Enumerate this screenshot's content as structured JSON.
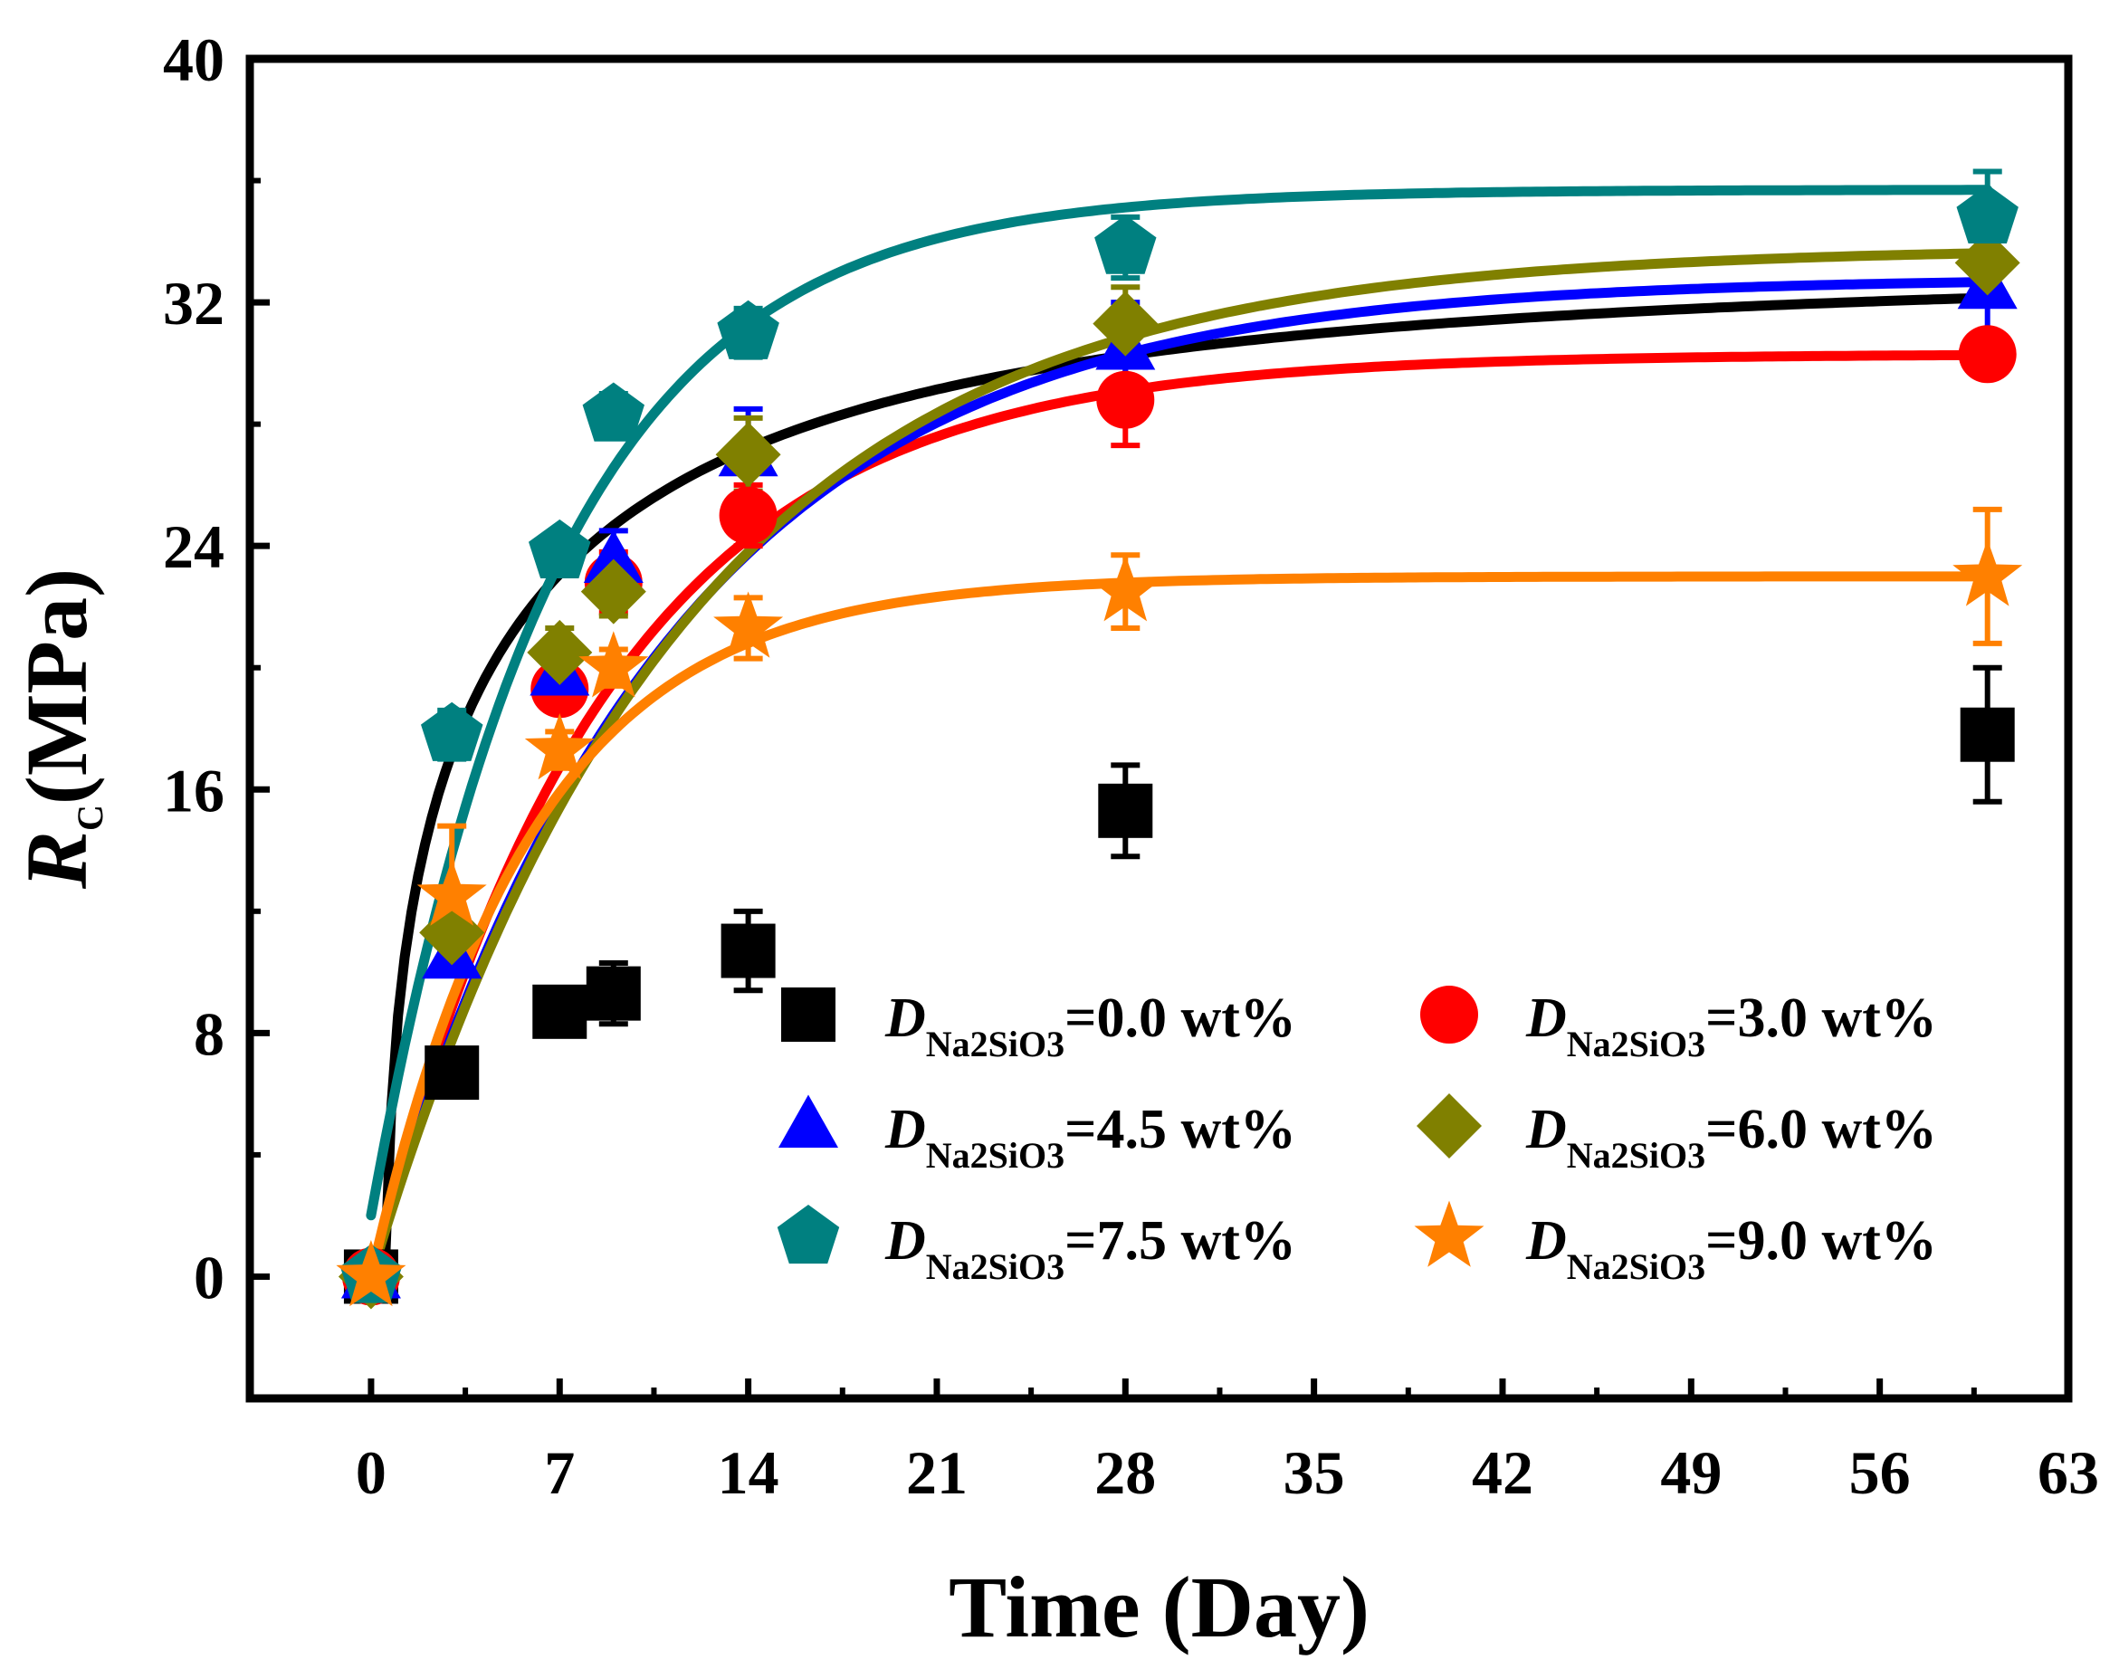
{
  "chart_data": {
    "type": "scatter",
    "title": "",
    "xlabel": "Time (Day)",
    "ylabel": {
      "main": "R",
      "sub": "C",
      "rest": "(MPa)"
    },
    "xlim": [
      -4.5,
      63
    ],
    "ylim": [
      -4,
      40
    ],
    "xticks": [
      0,
      7,
      14,
      21,
      28,
      35,
      42,
      49,
      56,
      63
    ],
    "yticks": [
      0,
      8,
      16,
      24,
      32,
      40
    ],
    "legend_position": "bottom-right",
    "series": [
      {
        "name": "D_Na2SiO3=0.0 wt%",
        "label_italic": "D",
        "label_sub": "Na2SiO3",
        "label_rest": "=0.0 wt%",
        "color": "#000000",
        "marker": "square",
        "x": [
          0,
          3,
          7,
          9,
          14,
          28,
          60
        ],
        "y": [
          0,
          6.7,
          8.7,
          9.3,
          10.7,
          15.3,
          17.8
        ],
        "err": [
          0,
          0.5,
          0.5,
          1.0,
          1.3,
          1.5,
          2.2
        ],
        "fit_a": 33,
        "fit_b": 0.475,
        "fit_shift": 0.6
      },
      {
        "name": "D_Na2SiO3=3.0 wt%",
        "label_italic": "D",
        "label_sub": "Na2SiO3",
        "label_rest": "=3.0 wt%",
        "color": "#ff0000",
        "marker": "circle",
        "x": [
          0,
          7,
          9,
          14,
          28,
          60
        ],
        "y": [
          0,
          19.3,
          22.8,
          25.0,
          28.8,
          30.3
        ],
        "err": [
          0,
          0.6,
          1.0,
          1.0,
          1.5,
          0.4
        ],
        "fit_a": 30.3,
        "fit_b": 0.115,
        "fit_shift": 0
      },
      {
        "name": "D_Na2SiO3=4.5 wt%",
        "label_italic": "D",
        "label_sub": "Na2SiO3",
        "label_rest": "=4.5 wt%",
        "color": "#0000ff",
        "marker": "triangle",
        "x": [
          0,
          3,
          7,
          9,
          14,
          28,
          60
        ],
        "y": [
          0,
          10.5,
          19.8,
          23.5,
          27.0,
          30.5,
          32.5
        ],
        "err": [
          0,
          0.6,
          0.8,
          1.0,
          1.5,
          1.5,
          2.2
        ],
        "fit_a": 32.8,
        "fit_b": 0.092,
        "fit_shift": 0
      },
      {
        "name": "D_Na2SiO3=6.0 wt%",
        "label_italic": "D",
        "label_sub": "Na2SiO3",
        "label_rest": "=6.0 wt%",
        "color": "#808000",
        "marker": "diamond",
        "x": [
          0,
          3,
          7,
          9,
          14,
          28,
          60
        ],
        "y": [
          0,
          11.3,
          20.5,
          22.5,
          27.0,
          31.3,
          33.3
        ],
        "err": [
          0,
          0.6,
          0.8,
          0.8,
          1.2,
          1.2,
          0.4
        ],
        "fit_a": 33.8,
        "fit_b": 0.087,
        "fit_shift": 0
      },
      {
        "name": "D_Na2SiO3=7.5 wt%",
        "label_italic": "D",
        "label_sub": "Na2SiO3",
        "label_rest": "=7.5 wt%",
        "color": "#008080",
        "marker": "pentagon",
        "x": [
          0,
          3,
          7,
          9,
          14,
          28,
          60
        ],
        "y": [
          0,
          17.8,
          23.8,
          28.3,
          31.0,
          33.8,
          34.8
        ],
        "err": [
          0,
          0.8,
          0.5,
          0.7,
          0.8,
          1.0,
          1.5
        ],
        "fit_a": 35.7,
        "fit_b": 0.145,
        "fit_shift": -0.4
      },
      {
        "name": "D_Na2SiO3=9.0 wt%",
        "label_italic": "D",
        "label_sub": "Na2SiO3",
        "label_rest": "=9.0 wt%",
        "color": "#ff8000",
        "marker": "star",
        "x": [
          0,
          3,
          7,
          9,
          14,
          28,
          60
        ],
        "y": [
          0,
          12.5,
          17.3,
          20.0,
          21.3,
          22.5,
          23.0
        ],
        "err": [
          0,
          2.3,
          0.6,
          0.6,
          1.0,
          1.2,
          2.2
        ],
        "fit_a": 23.0,
        "fit_b": 0.168,
        "fit_shift": 0
      }
    ]
  }
}
